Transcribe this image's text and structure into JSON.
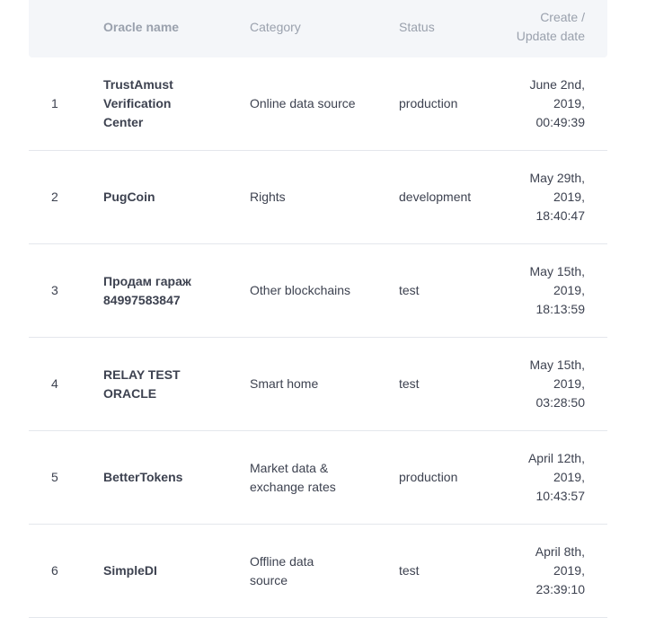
{
  "header": {
    "num": "",
    "name": "Oracle name",
    "category": "Category",
    "status": "Status",
    "date_line1": "Create /",
    "date_line2": "Update date"
  },
  "rows": [
    {
      "num": "1",
      "name_lines": [
        "TrustAmust",
        "Verification",
        "Center"
      ],
      "category_lines": [
        "Online data source"
      ],
      "status": "production",
      "date_lines": [
        "June 2nd,",
        "2019,",
        "00:49:39"
      ]
    },
    {
      "num": "2",
      "name_lines": [
        "PugCoin"
      ],
      "category_lines": [
        "Rights"
      ],
      "status": "development",
      "date_lines": [
        "May 29th,",
        "2019,",
        "18:40:47"
      ]
    },
    {
      "num": "3",
      "name_lines": [
        "Продам гараж",
        "84997583847"
      ],
      "category_lines": [
        "Other blockchains"
      ],
      "status": "test",
      "date_lines": [
        "May 15th,",
        "2019,",
        "18:13:59"
      ]
    },
    {
      "num": "4",
      "name_lines": [
        "RELAY TEST",
        "ORACLE"
      ],
      "category_lines": [
        "Smart home"
      ],
      "status": "test",
      "date_lines": [
        "May 15th,",
        "2019,",
        "03:28:50"
      ]
    },
    {
      "num": "5",
      "name_lines": [
        "BetterTokens"
      ],
      "category_lines": [
        "Market data &",
        "exchange rates"
      ],
      "status": "production",
      "date_lines": [
        "April 12th,",
        "2019,",
        "10:43:57"
      ]
    },
    {
      "num": "6",
      "name_lines": [
        "SimpleDI"
      ],
      "category_lines": [
        "Offline data",
        "source"
      ],
      "status": "test",
      "date_lines": [
        "April 8th,",
        "2019,",
        "23:39:10"
      ]
    }
  ]
}
